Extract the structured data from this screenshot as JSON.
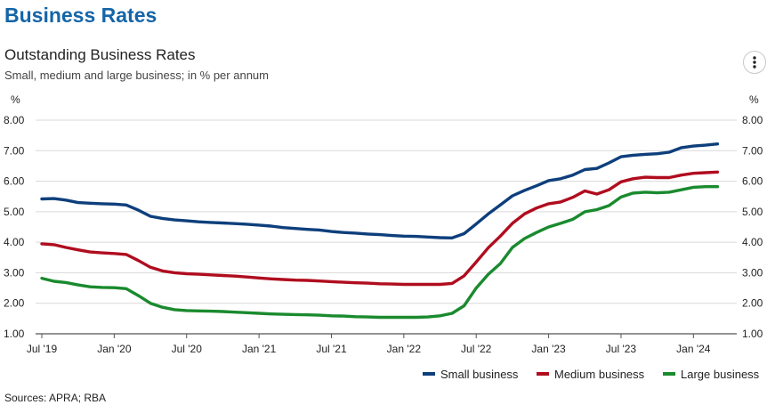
{
  "page": {
    "title": "Business Rates",
    "source": "Sources: APRA; RBA"
  },
  "colors": {
    "brand": "#1565a8",
    "grid": "#d9d9d9"
  },
  "menu_icon": "more-vertical-icon",
  "chart_data": {
    "type": "line",
    "title": "Outstanding Business Rates",
    "subtitle": "Small, medium and large business; in % per annum",
    "ylabel_left": "%",
    "ylabel_right": "%",
    "ylim": [
      1.0,
      8.0
    ],
    "yticks": [
      "1.00",
      "2.00",
      "3.00",
      "4.00",
      "5.00",
      "6.00",
      "7.00",
      "8.00"
    ],
    "xlim": [
      "2019-07",
      "2024-04"
    ],
    "xticks": [
      {
        "date": "2019-07",
        "label": "Jul '19"
      },
      {
        "date": "2020-01",
        "label": "Jan '20"
      },
      {
        "date": "2020-07",
        "label": "Jul '20"
      },
      {
        "date": "2021-01",
        "label": "Jan '21"
      },
      {
        "date": "2021-07",
        "label": "Jul '21"
      },
      {
        "date": "2022-01",
        "label": "Jan '22"
      },
      {
        "date": "2022-07",
        "label": "Jul '22"
      },
      {
        "date": "2023-01",
        "label": "Jan '23"
      },
      {
        "date": "2023-07",
        "label": "Jul '23"
      },
      {
        "date": "2024-01",
        "label": "Jan '24"
      }
    ],
    "grid": true,
    "legend_position": "bottom-right",
    "x": [
      "2019-07",
      "2019-08",
      "2019-09",
      "2019-10",
      "2019-11",
      "2019-12",
      "2020-01",
      "2020-02",
      "2020-03",
      "2020-04",
      "2020-05",
      "2020-06",
      "2020-07",
      "2020-08",
      "2020-09",
      "2020-10",
      "2020-11",
      "2020-12",
      "2021-01",
      "2021-02",
      "2021-03",
      "2021-04",
      "2021-05",
      "2021-06",
      "2021-07",
      "2021-08",
      "2021-09",
      "2021-10",
      "2021-11",
      "2021-12",
      "2022-01",
      "2022-02",
      "2022-03",
      "2022-04",
      "2022-05",
      "2022-06",
      "2022-07",
      "2022-08",
      "2022-09",
      "2022-10",
      "2022-11",
      "2022-12",
      "2023-01",
      "2023-02",
      "2023-03",
      "2023-04",
      "2023-05",
      "2023-06",
      "2023-07",
      "2023-08",
      "2023-09",
      "2023-10",
      "2023-11",
      "2023-12",
      "2024-01",
      "2024-02",
      "2024-03"
    ],
    "series": [
      {
        "name": "Small business",
        "color": "#0e3f7c",
        "values": [
          5.42,
          5.43,
          5.38,
          5.3,
          5.28,
          5.26,
          5.25,
          5.22,
          5.05,
          4.85,
          4.78,
          4.73,
          4.7,
          4.67,
          4.65,
          4.63,
          4.61,
          4.59,
          4.56,
          4.53,
          4.48,
          4.45,
          4.42,
          4.4,
          4.35,
          4.32,
          4.3,
          4.27,
          4.25,
          4.22,
          4.2,
          4.19,
          4.17,
          4.15,
          4.14,
          4.28,
          4.6,
          4.93,
          5.22,
          5.52,
          5.7,
          5.85,
          6.02,
          6.08,
          6.2,
          6.38,
          6.42,
          6.6,
          6.8,
          6.85,
          6.88,
          6.9,
          6.95,
          7.1,
          7.15,
          7.18,
          7.22
        ]
      },
      {
        "name": "Medium business",
        "color": "#b00d1f",
        "values": [
          3.95,
          3.92,
          3.83,
          3.75,
          3.68,
          3.65,
          3.63,
          3.6,
          3.4,
          3.18,
          3.06,
          3.0,
          2.97,
          2.95,
          2.93,
          2.91,
          2.89,
          2.86,
          2.83,
          2.8,
          2.78,
          2.76,
          2.75,
          2.73,
          2.71,
          2.69,
          2.67,
          2.66,
          2.64,
          2.63,
          2.62,
          2.62,
          2.62,
          2.62,
          2.65,
          2.9,
          3.35,
          3.82,
          4.2,
          4.62,
          4.93,
          5.12,
          5.26,
          5.32,
          5.47,
          5.68,
          5.58,
          5.72,
          5.98,
          6.08,
          6.13,
          6.12,
          6.12,
          6.2,
          6.26,
          6.28,
          6.3
        ]
      },
      {
        "name": "Large business",
        "color": "#1a8a2e",
        "values": [
          2.82,
          2.72,
          2.68,
          2.6,
          2.54,
          2.52,
          2.51,
          2.48,
          2.25,
          2.0,
          1.87,
          1.79,
          1.76,
          1.75,
          1.74,
          1.73,
          1.71,
          1.69,
          1.67,
          1.65,
          1.64,
          1.63,
          1.62,
          1.61,
          1.59,
          1.58,
          1.56,
          1.55,
          1.54,
          1.54,
          1.54,
          1.54,
          1.55,
          1.59,
          1.67,
          1.92,
          2.5,
          2.95,
          3.3,
          3.83,
          4.12,
          4.32,
          4.5,
          4.62,
          4.75,
          5.0,
          5.07,
          5.2,
          5.48,
          5.61,
          5.64,
          5.62,
          5.64,
          5.72,
          5.8,
          5.82,
          5.82
        ]
      }
    ]
  }
}
